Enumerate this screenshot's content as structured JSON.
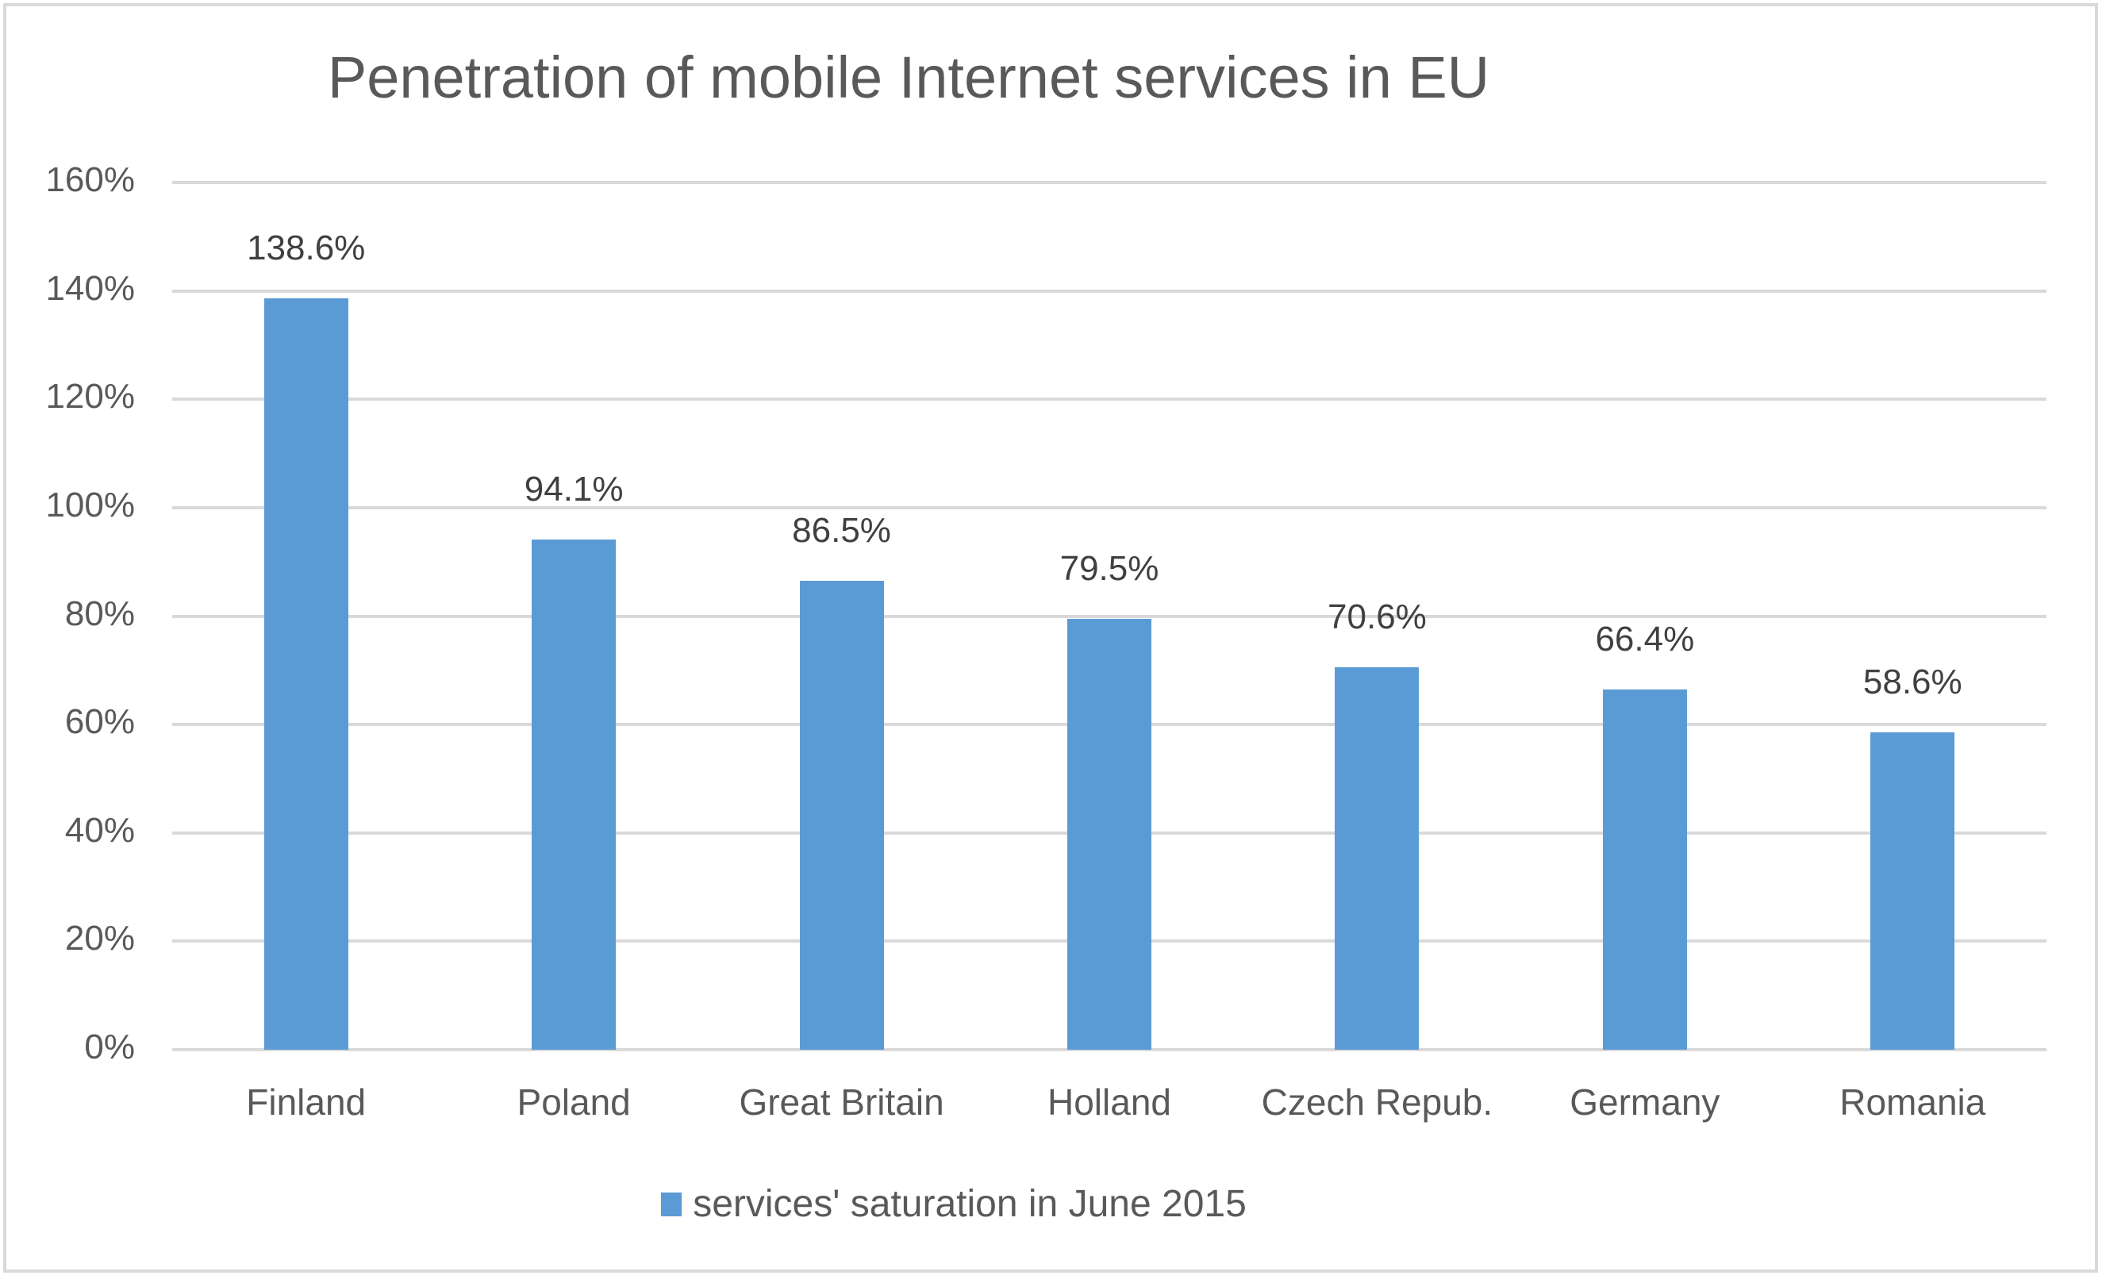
{
  "chart_data": {
    "type": "bar",
    "title": "Penetration of mobile Internet services in EU",
    "categories": [
      "Finland",
      "Poland",
      "Great Britain",
      "Holland",
      "Czech Repub.",
      "Germany",
      "Romania"
    ],
    "series": [
      {
        "name": "services' saturation in June 2015",
        "values": [
          138.6,
          94.1,
          86.5,
          79.5,
          70.6,
          66.4,
          58.6
        ],
        "labels": [
          "138.6%",
          "94.1%",
          "86.5%",
          "79.5%",
          "70.6%",
          "66.4%",
          "58.6%"
        ],
        "color": "#5b9bd5"
      }
    ],
    "xlabel": "",
    "ylabel": "",
    "ylim": [
      0,
      160
    ],
    "yticks": [
      "0%",
      "20%",
      "40%",
      "60%",
      "80%",
      "100%",
      "120%",
      "140%",
      "160%"
    ],
    "grid": true,
    "legend_position": "bottom",
    "value_format": "percent"
  },
  "colors": {
    "bar": "#5b9bd5",
    "gridline": "#d9d9d9",
    "text": "#595959",
    "label_text": "#404040",
    "border": "#d9d9d9"
  }
}
